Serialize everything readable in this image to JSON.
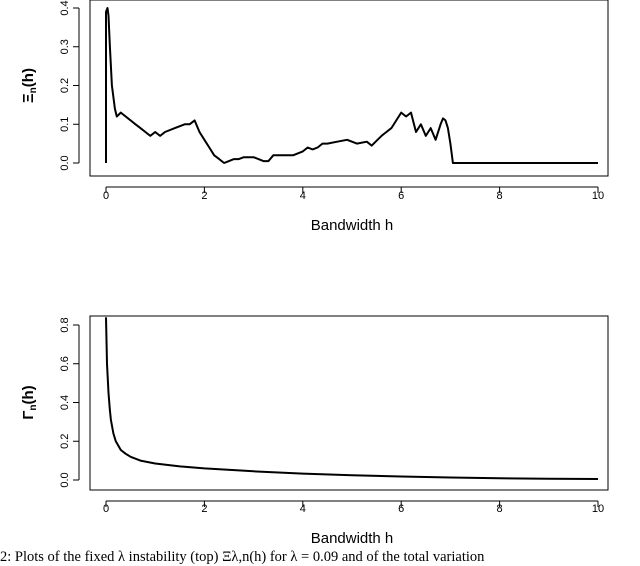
{
  "caption": "2: Plots of the fixed λ instability (top) Ξλ,n(h) for λ = 0.09 and of the total variation",
  "chart_data": [
    {
      "type": "line",
      "title": "",
      "xlabel": "Bandwidth h",
      "ylabel": "Ξn(h)",
      "ylabel_main": "Ξ",
      "ylabel_sub": "n",
      "ylabel_tail": "(h)",
      "xlim": [
        0,
        10
      ],
      "ylim": [
        0,
        0.4
      ],
      "xticks": [
        0,
        2,
        4,
        6,
        8,
        10
      ],
      "yticks": [
        0.0,
        0.1,
        0.2,
        0.3,
        0.4
      ],
      "xtick_labels": [
        "0",
        "2",
        "4",
        "6",
        "8",
        "10"
      ],
      "ytick_labels": [
        "0.0",
        "0.1",
        "0.2",
        "0.3",
        "0.4"
      ],
      "series": [
        {
          "x": [
            0.0,
            0.0,
            0.03,
            0.05,
            0.08,
            0.12,
            0.18,
            0.22,
            0.3,
            0.4,
            0.5,
            0.6,
            0.7,
            0.8,
            0.9,
            1.0,
            1.1,
            1.2,
            1.4,
            1.6,
            1.7,
            1.8,
            1.9,
            2.0,
            2.1,
            2.2,
            2.3,
            2.4,
            2.5,
            2.6,
            2.7,
            2.8,
            3.0,
            3.2,
            3.3,
            3.4,
            3.6,
            3.8,
            4.0,
            4.1,
            4.2,
            4.3,
            4.4,
            4.5,
            4.7,
            4.9,
            5.1,
            5.3,
            5.4,
            5.6,
            5.7,
            5.8,
            5.9,
            6.0,
            6.1,
            6.2,
            6.3,
            6.4,
            6.5,
            6.6,
            6.7,
            6.8,
            6.85,
            6.9,
            6.95,
            7.0,
            7.05,
            7.1,
            8.0,
            9.0,
            10.0
          ],
          "y": [
            0.0,
            0.39,
            0.4,
            0.38,
            0.3,
            0.2,
            0.14,
            0.12,
            0.13,
            0.12,
            0.11,
            0.1,
            0.09,
            0.08,
            0.07,
            0.08,
            0.07,
            0.08,
            0.09,
            0.1,
            0.1,
            0.11,
            0.08,
            0.06,
            0.04,
            0.02,
            0.01,
            0.0,
            0.005,
            0.01,
            0.01,
            0.015,
            0.015,
            0.005,
            0.005,
            0.02,
            0.02,
            0.02,
            0.03,
            0.04,
            0.035,
            0.04,
            0.05,
            0.05,
            0.055,
            0.06,
            0.05,
            0.055,
            0.045,
            0.07,
            0.08,
            0.09,
            0.11,
            0.13,
            0.12,
            0.13,
            0.08,
            0.1,
            0.07,
            0.09,
            0.06,
            0.1,
            0.115,
            0.11,
            0.09,
            0.05,
            0.0,
            0.0,
            0.0,
            0.0,
            0.0
          ]
        }
      ]
    },
    {
      "type": "line",
      "title": "",
      "xlabel": "Bandwidth h",
      "ylabel": "Γn(h)",
      "ylabel_main": "Γ",
      "ylabel_sub": "n",
      "ylabel_tail": "(h)",
      "xlim": [
        0,
        10
      ],
      "ylim": [
        0,
        0.8
      ],
      "xticks": [
        0,
        2,
        4,
        6,
        8,
        10
      ],
      "yticks": [
        0.0,
        0.2,
        0.4,
        0.6,
        0.8
      ],
      "xtick_labels": [
        "0",
        "2",
        "4",
        "6",
        "8",
        "10"
      ],
      "ytick_labels": [
        "0.0",
        "0.2",
        "0.4",
        "0.6",
        "0.8"
      ],
      "series": [
        {
          "x": [
            0.0,
            0.02,
            0.05,
            0.08,
            0.1,
            0.15,
            0.2,
            0.3,
            0.4,
            0.5,
            0.7,
            1.0,
            1.5,
            2.0,
            3.0,
            4.0,
            5.0,
            6.0,
            7.0,
            8.0,
            9.0,
            10.0
          ],
          "y": [
            0.84,
            0.6,
            0.45,
            0.36,
            0.31,
            0.24,
            0.2,
            0.155,
            0.135,
            0.12,
            0.1,
            0.085,
            0.07,
            0.06,
            0.045,
            0.033,
            0.025,
            0.018,
            0.013,
            0.009,
            0.006,
            0.005
          ]
        }
      ]
    }
  ]
}
